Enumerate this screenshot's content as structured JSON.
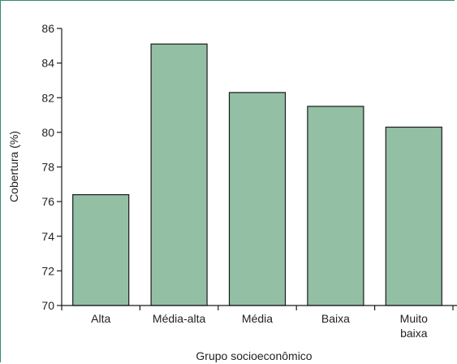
{
  "chart_data": {
    "type": "bar",
    "categories": [
      "Alta",
      "Média-alta",
      "Média",
      "Baixa",
      "Muito baixa"
    ],
    "category_label_lines": [
      [
        "Alta"
      ],
      [
        "Média-alta"
      ],
      [
        "Média"
      ],
      [
        "Baixa"
      ],
      [
        "Muito",
        "baixa"
      ]
    ],
    "values": [
      76.4,
      85.1,
      82.3,
      81.5,
      80.3
    ],
    "xlabel": "Grupo socioeconômico",
    "ylabel": "Cobertura (%)",
    "ylim": [
      70,
      86
    ],
    "yticks": [
      70,
      72,
      74,
      76,
      78,
      80,
      82,
      84,
      86
    ],
    "grid": false,
    "bar_color": "#93bfa5",
    "bar_edge_color": "#1a1a1a",
    "frame_color": "#2f8f6a"
  }
}
